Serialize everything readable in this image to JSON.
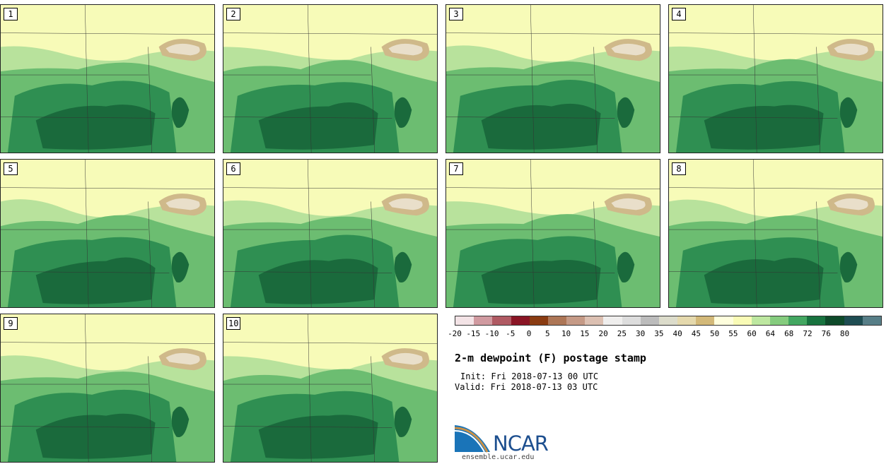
{
  "panels": [
    {
      "label": "1"
    },
    {
      "label": "2"
    },
    {
      "label": "3"
    },
    {
      "label": "4"
    },
    {
      "label": "5"
    },
    {
      "label": "6"
    },
    {
      "label": "7"
    },
    {
      "label": "8"
    },
    {
      "label": "9"
    },
    {
      "label": "10"
    }
  ],
  "colorbar": {
    "colors": [
      "#f3e3e6",
      "#d09aa0",
      "#b05a63",
      "#8a1525",
      "#8a3c12",
      "#ad7656",
      "#c59a86",
      "#dcc0b2",
      "#efeeed",
      "#dddddd",
      "#bcbcbc",
      "#dcdccb",
      "#e5d9ad",
      "#d3b979",
      "#fefedd",
      "#f9fbb6",
      "#bde7a0",
      "#85cc7e",
      "#43a761",
      "#18733f",
      "#0e4a2a",
      "#1e4d52",
      "#577e87"
    ],
    "ticks": [
      "-20",
      "-15",
      "-10",
      "-5",
      "0",
      "5",
      "10",
      "15",
      "20",
      "25",
      "30",
      "35",
      "40",
      "45",
      "50",
      "55",
      "60",
      "64",
      "68",
      "72",
      "76",
      "80"
    ]
  },
  "title": "2-m dewpoint (F) postage stamp",
  "init": "Init: Fri 2018-07-13 00 UTC",
  "valid": "Valid: Fri 2018-07-13 03 UTC",
  "logo": {
    "text": "NCAR",
    "site": "ensemble.ucar.edu"
  },
  "map_colors": {
    "outer": "#f7fbb8",
    "light": "#b8e29c",
    "mid": "#6cbd71",
    "dark": "#2f8f52",
    "darker": "#1a6a3c",
    "lake": "#ffffff",
    "tan": "#cfb98a"
  }
}
